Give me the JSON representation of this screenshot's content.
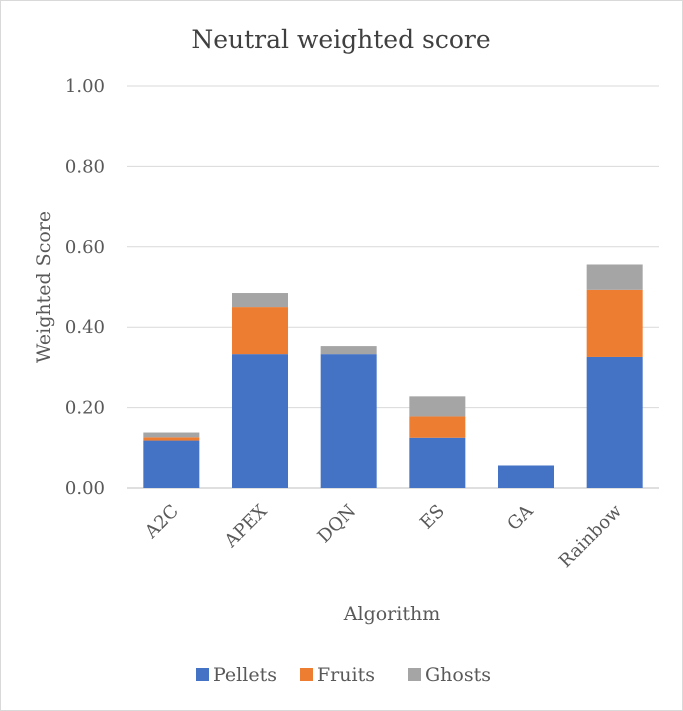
{
  "chart_data": {
    "type": "bar",
    "stacked": true,
    "title": "Neutral weighted score",
    "xlabel": "Algorithm",
    "ylabel": "Weighted Score",
    "categories": [
      "A2C",
      "APEX",
      "DQN",
      "ES",
      "GA",
      "Rainbow"
    ],
    "series": [
      {
        "name": "Pellets",
        "color": "#4472c4",
        "values": [
          0.118,
          0.333,
          0.333,
          0.125,
          0.056,
          0.326
        ]
      },
      {
        "name": "Fruits",
        "color": "#ed7d31",
        "values": [
          0.008,
          0.117,
          0.0,
          0.053,
          0.0,
          0.167
        ]
      },
      {
        "name": "Ghosts",
        "color": "#a5a5a5",
        "values": [
          0.012,
          0.035,
          0.02,
          0.05,
          0.0,
          0.063
        ]
      }
    ],
    "ylim": [
      0,
      1
    ],
    "yticks": [
      "0.00",
      "0.20",
      "0.40",
      "0.60",
      "0.80",
      "1.00"
    ],
    "grid": true,
    "legend_position": "bottom"
  }
}
